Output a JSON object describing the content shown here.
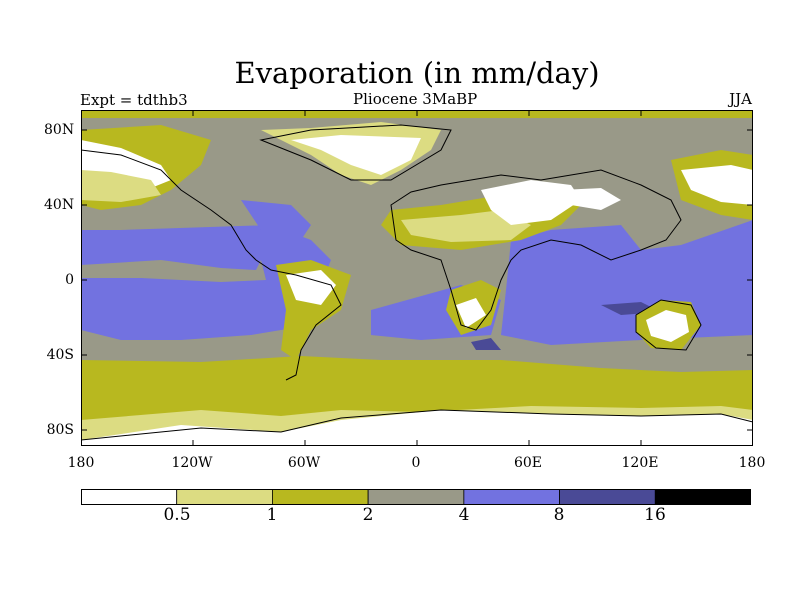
{
  "title": "Evaporation (in mm/day)",
  "experiment_label": "Expt = tdthb3",
  "period_label": "Pliocene   3MaBP",
  "season_label": "JJA",
  "lat_ticks": [
    "80N",
    "40N",
    "0",
    "40S",
    "80S"
  ],
  "lon_ticks": [
    "180",
    "120W",
    "60W",
    "0",
    "60E",
    "120E",
    "180"
  ],
  "colorbar": {
    "colors": [
      "#ffffff",
      "#dcdc82",
      "#b8b81f",
      "#999988",
      "#7272e0",
      "#4a4a96",
      "#000000"
    ],
    "labels": [
      "0.5",
      "1",
      "2",
      "4",
      "8",
      "16"
    ]
  }
}
